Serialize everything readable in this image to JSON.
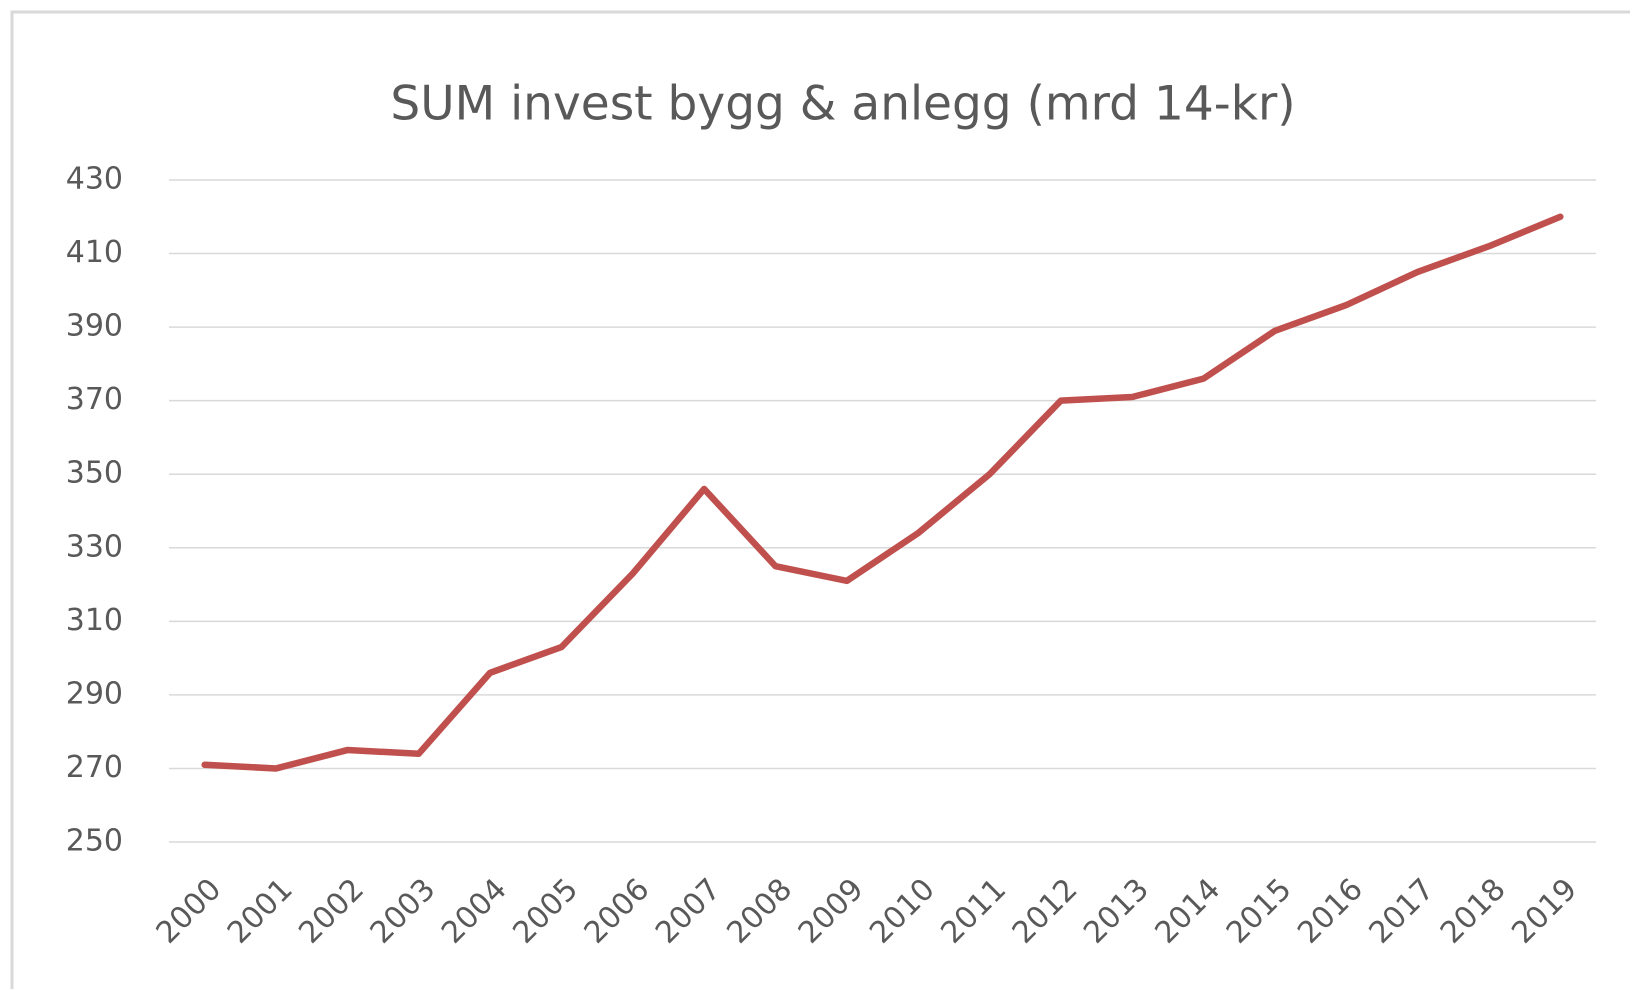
{
  "chart_data": {
    "type": "line",
    "title": "SUM invest bygg & anlegg (mrd 14-kr)",
    "categories": [
      "2000",
      "2001",
      "2002",
      "2003",
      "2004",
      "2005",
      "2006",
      "2007",
      "2008",
      "2009",
      "2010",
      "2011",
      "2012",
      "2013",
      "2014",
      "2015",
      "2016",
      "2017",
      "2018",
      "2019"
    ],
    "values": [
      271,
      270,
      275,
      274,
      296,
      303,
      323,
      346,
      325,
      321,
      334,
      350,
      370,
      371,
      376,
      389,
      396,
      405,
      412,
      420
    ],
    "color": "#c0504d",
    "ylim": [
      250,
      430
    ],
    "yticks": [
      250,
      270,
      290,
      310,
      330,
      350,
      370,
      390,
      410,
      430
    ],
    "grid": true
  }
}
